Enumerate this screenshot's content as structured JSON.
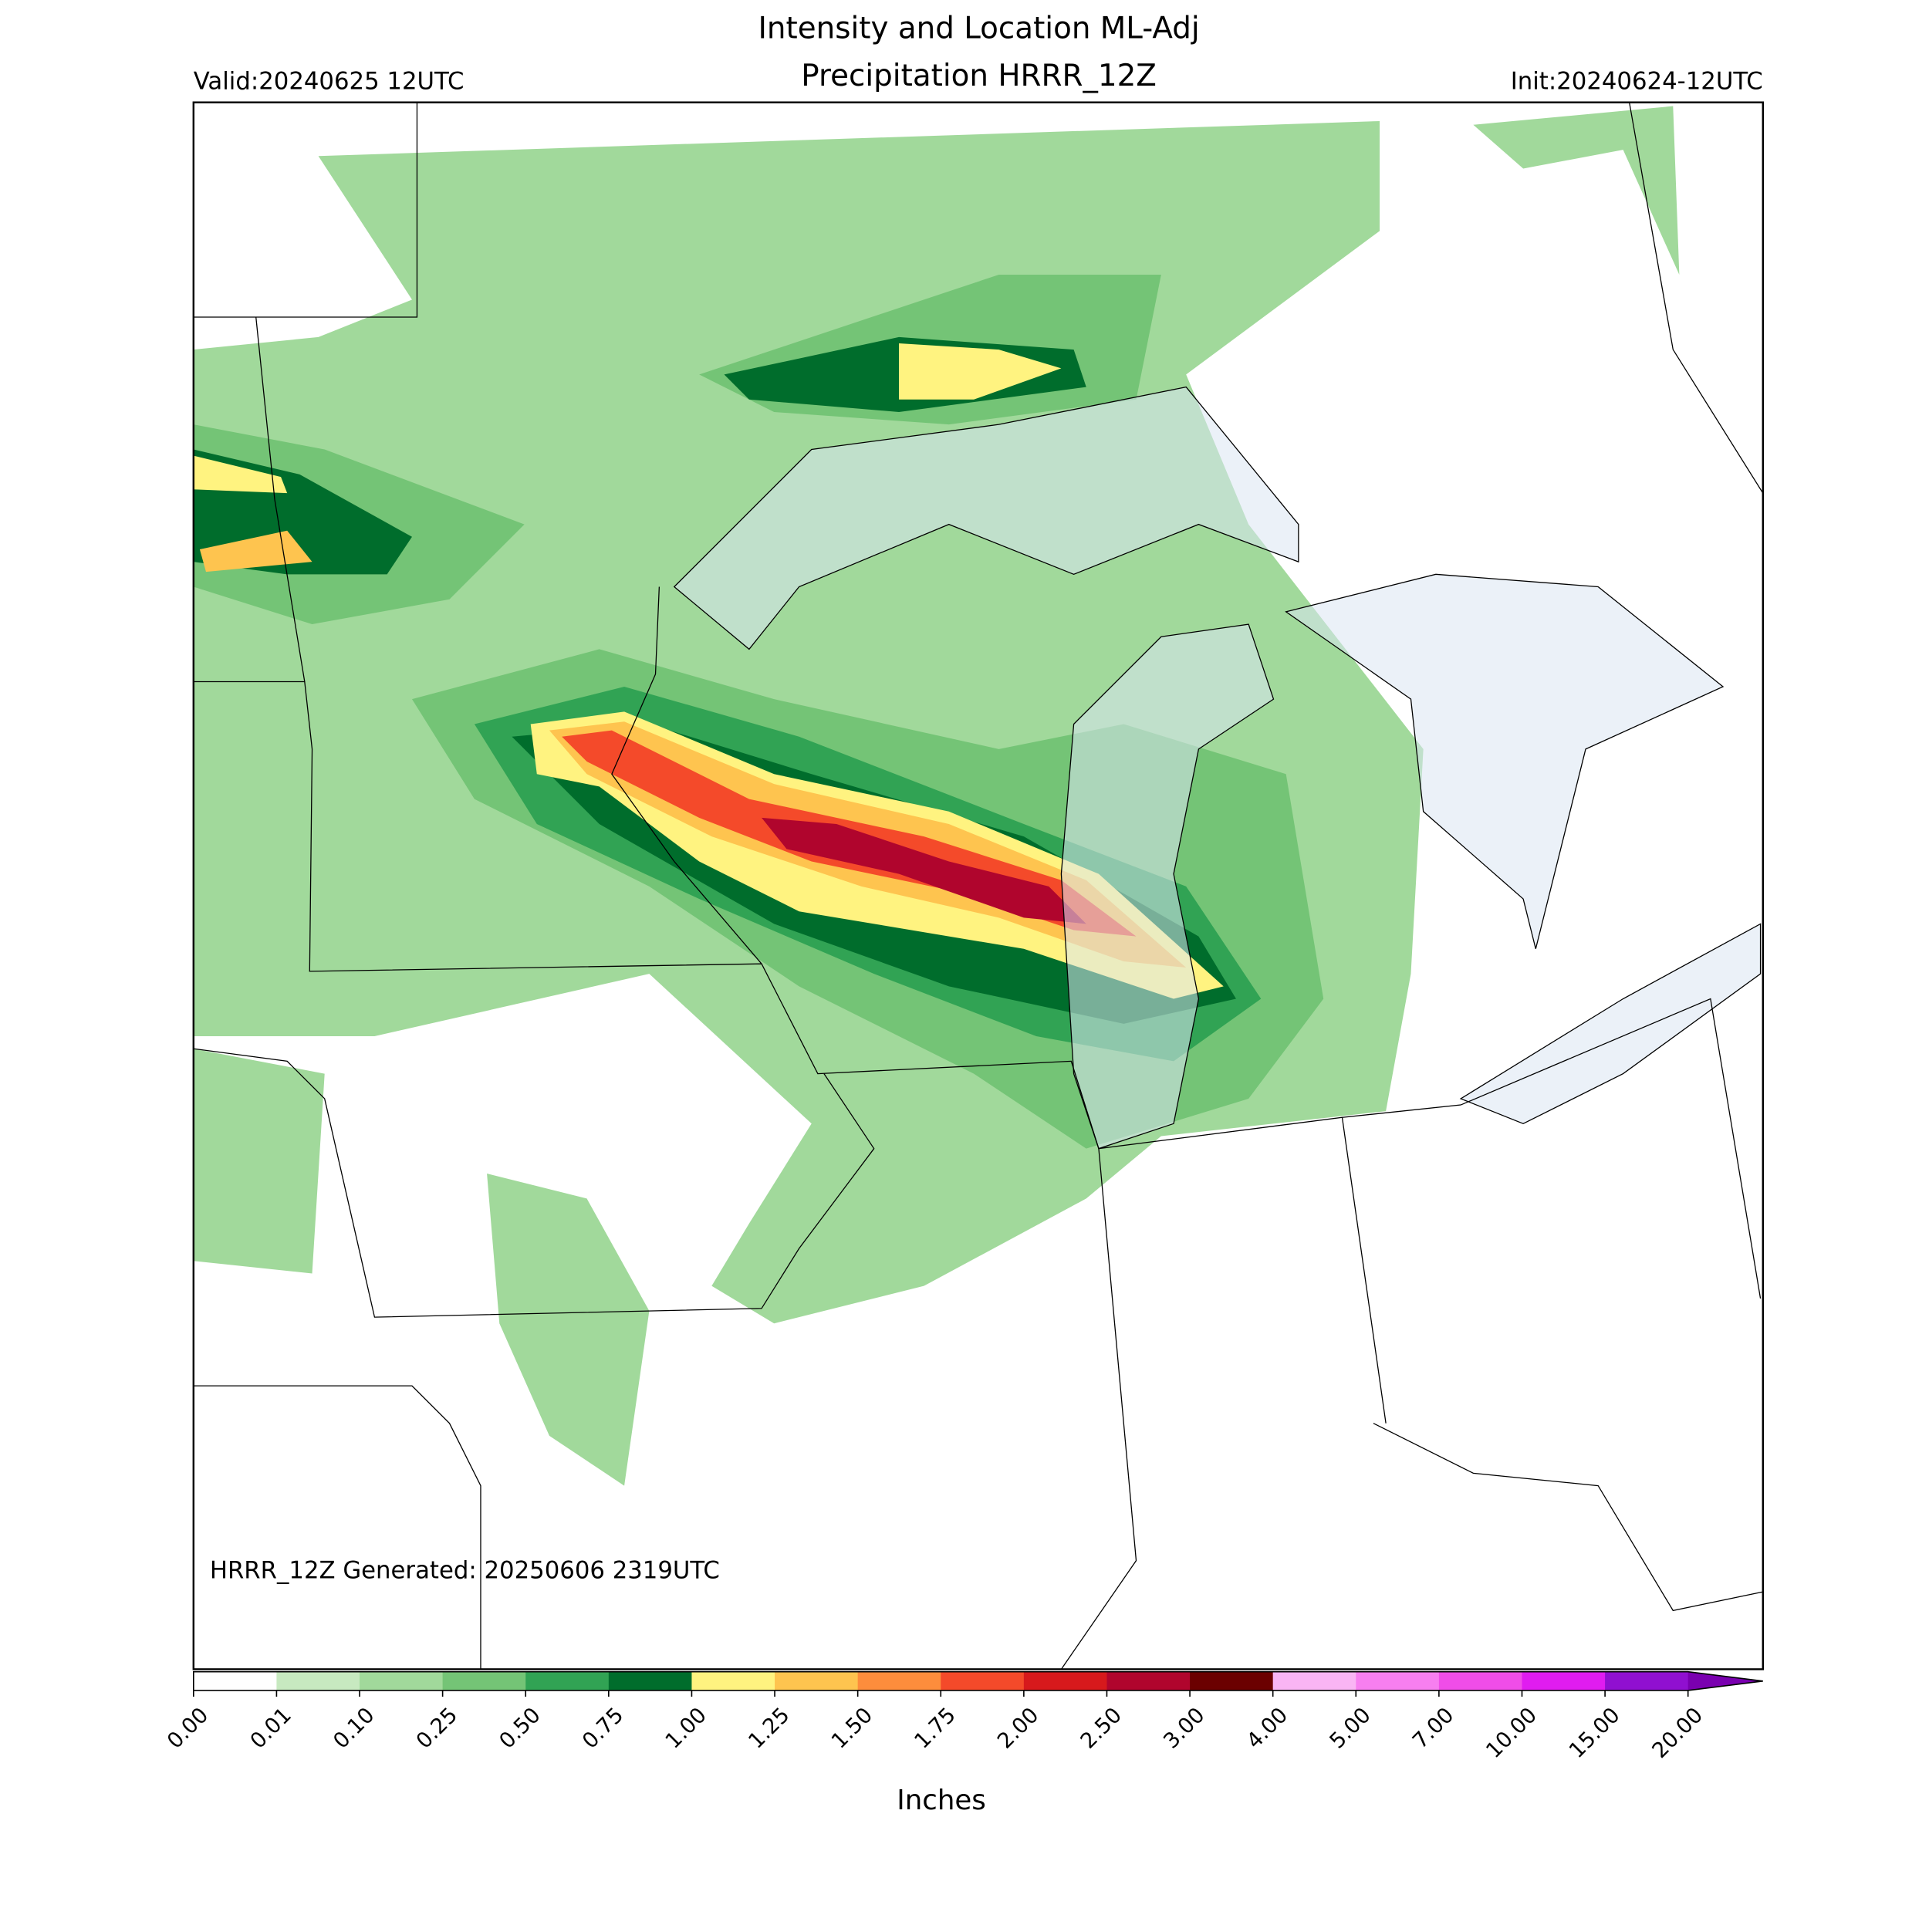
{
  "header": {
    "title_lines": [
      "Intensity and Location ML-Adj",
      "Precipitation HRRR_12Z"
    ],
    "valid": "Valid:20240625 12UTC",
    "init": "Init:20240624-12UTC"
  },
  "map": {
    "generated": "HRRR_12Z Generated: 20250606 2319UTC"
  },
  "colorbar": {
    "label": "Inches",
    "ticks": [
      "0.00",
      "0.01",
      "0.10",
      "0.25",
      "0.50",
      "0.75",
      "1.00",
      "1.25",
      "1.50",
      "1.75",
      "2.00",
      "2.50",
      "3.00",
      "4.00",
      "5.00",
      "7.00",
      "10.00",
      "15.00",
      "20.00"
    ],
    "colors": [
      "#ffffff",
      "#c7e9c0",
      "#a1d99b",
      "#74c476",
      "#31a354",
      "#006d2c",
      "#fff380",
      "#fec44f",
      "#fd8d3c",
      "#f44a2a",
      "#d7191c",
      "#b0052d",
      "#6b0000",
      "#f9b5f4",
      "#f77ff0",
      "#f04de8",
      "#e01cf0",
      "#9010d0"
    ],
    "extend_color": "#7a00b0"
  }
}
